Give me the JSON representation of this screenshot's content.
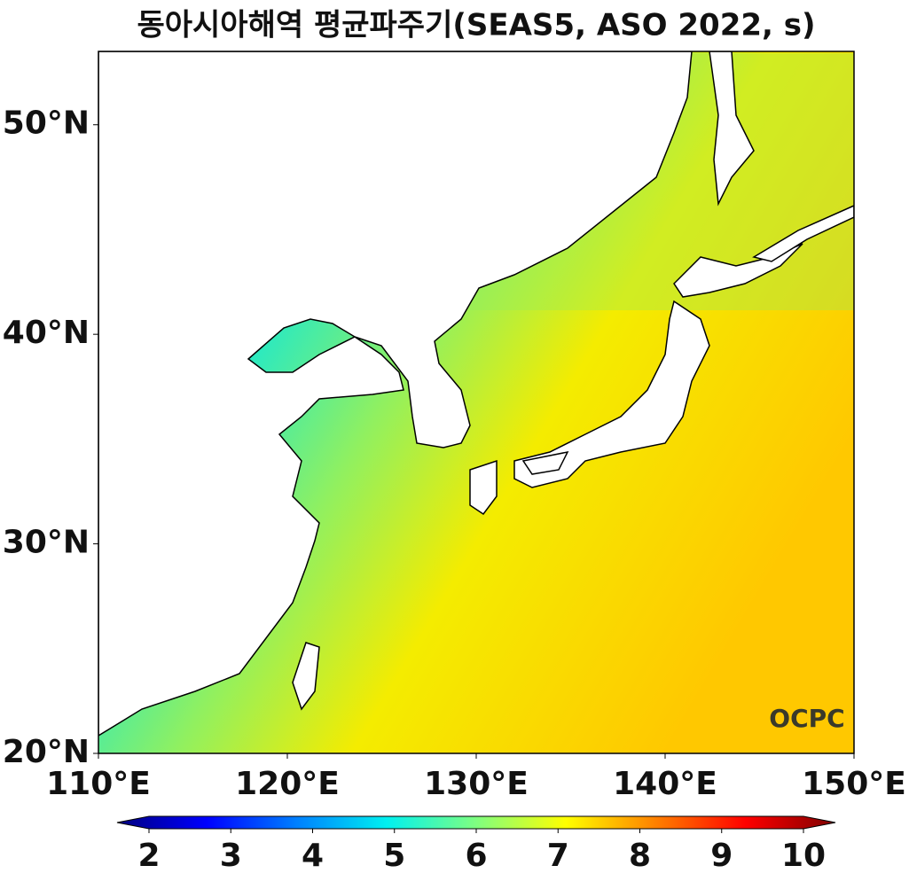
{
  "title": "동아시아해역 평균파주기(SEAS5, ASO 2022, s)",
  "map": {
    "xlim": [
      110,
      150
    ],
    "ylim": [
      20,
      53.5
    ],
    "xticks": [
      {
        "value": 110,
        "label": "110°E"
      },
      {
        "value": 120,
        "label": "120°E"
      },
      {
        "value": 130,
        "label": "130°E"
      },
      {
        "value": 140,
        "label": "140°E"
      },
      {
        "value": 150,
        "label": "150°E"
      }
    ],
    "yticks": [
      {
        "value": 20,
        "label": "20°N"
      },
      {
        "value": 30,
        "label": "30°N"
      },
      {
        "value": 40,
        "label": "40°N"
      },
      {
        "value": 50,
        "label": "50°N"
      }
    ]
  },
  "colorbar": {
    "lim": [
      2,
      10
    ],
    "ticks": [
      2,
      3,
      4,
      5,
      6,
      7,
      8,
      9,
      10
    ]
  },
  "logo": "OCPC"
}
